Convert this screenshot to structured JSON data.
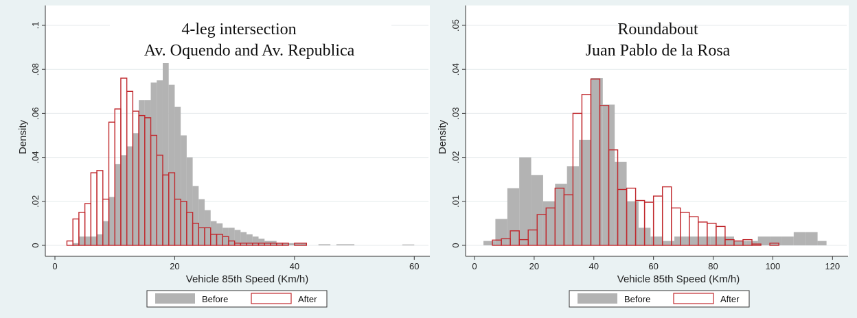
{
  "colors": {
    "before_fill": "#b3b3b3",
    "after_stroke": "#c0282d",
    "plot_bg": "#ffffff",
    "page_bg": "#eaf2f3",
    "grid": "#e4eaeb"
  },
  "chart_data": [
    {
      "type": "histogram",
      "title": "4-leg intersection",
      "subtitle": "Av. Oquendo and Av. Republica",
      "xlabel": "Vehicle 85th Speed (Km/h)",
      "ylabel": "Density",
      "xlim": [
        0,
        61
      ],
      "ylim": [
        0,
        0.1
      ],
      "xticks": [
        0,
        20,
        40,
        60
      ],
      "yticks": [
        0,
        0.02,
        0.04,
        0.06,
        0.08,
        0.1
      ],
      "ytick_labels": [
        "0",
        ".02",
        ".04",
        ".06",
        ".08",
        ".1"
      ],
      "grid": true,
      "legend_position": "bottom",
      "series": [
        {
          "name": "Before",
          "style": "filled",
          "bins": [
            [
              3,
              4,
              0.001
            ],
            [
              4,
              5,
              0.004
            ],
            [
              5,
              6,
              0.004
            ],
            [
              6,
              7,
              0.004
            ],
            [
              7,
              8,
              0.005
            ],
            [
              8,
              9,
              0.011
            ],
            [
              9,
              10,
              0.022
            ],
            [
              10,
              11,
              0.037
            ],
            [
              11,
              12,
              0.041
            ],
            [
              12,
              13,
              0.045
            ],
            [
              13,
              14,
              0.051
            ],
            [
              14,
              15,
              0.066
            ],
            [
              15,
              16,
              0.066
            ],
            [
              16,
              17,
              0.074
            ],
            [
              17,
              18,
              0.075
            ],
            [
              18,
              19,
              0.083
            ],
            [
              19,
              20,
              0.073
            ],
            [
              20,
              21,
              0.063
            ],
            [
              21,
              22,
              0.05
            ],
            [
              22,
              23,
              0.04
            ],
            [
              23,
              24,
              0.027
            ],
            [
              24,
              25,
              0.021
            ],
            [
              25,
              26,
              0.016
            ],
            [
              26,
              27,
              0.011
            ],
            [
              27,
              28,
              0.01
            ],
            [
              28,
              29,
              0.008
            ],
            [
              29,
              30,
              0.008
            ],
            [
              30,
              31,
              0.007
            ],
            [
              31,
              32,
              0.006
            ],
            [
              32,
              33,
              0.005
            ],
            [
              33,
              34,
              0.004
            ],
            [
              34,
              35,
              0.003
            ],
            [
              35,
              36,
              0.002
            ],
            [
              36,
              37,
              0.002
            ],
            [
              37,
              38,
              0.001
            ],
            [
              38,
              39,
              0.001
            ],
            [
              39,
              40,
              0.001
            ],
            [
              40,
              41,
              0.001
            ],
            [
              41,
              42,
              0.001
            ],
            [
              44,
              46,
              0.0005
            ],
            [
              47,
              50,
              0.0005
            ],
            [
              58,
              60,
              0.0004
            ]
          ]
        },
        {
          "name": "After",
          "style": "outline",
          "bins": [
            [
              2,
              3,
              0.002
            ],
            [
              3,
              4,
              0.012
            ],
            [
              4,
              5,
              0.015
            ],
            [
              5,
              6,
              0.019
            ],
            [
              6,
              7,
              0.033
            ],
            [
              7,
              8,
              0.034
            ],
            [
              8,
              9,
              0.021
            ],
            [
              9,
              10,
              0.056
            ],
            [
              10,
              11,
              0.062
            ],
            [
              11,
              12,
              0.076
            ],
            [
              12,
              13,
              0.07
            ],
            [
              13,
              14,
              0.061
            ],
            [
              14,
              15,
              0.059
            ],
            [
              15,
              16,
              0.058
            ],
            [
              16,
              17,
              0.05
            ],
            [
              17,
              18,
              0.041
            ],
            [
              18,
              19,
              0.032
            ],
            [
              19,
              20,
              0.033
            ],
            [
              20,
              21,
              0.021
            ],
            [
              21,
              22,
              0.02
            ],
            [
              22,
              23,
              0.015
            ],
            [
              23,
              24,
              0.01
            ],
            [
              24,
              25,
              0.008
            ],
            [
              25,
              26,
              0.008
            ],
            [
              26,
              27,
              0.005
            ],
            [
              27,
              28,
              0.005
            ],
            [
              28,
              29,
              0.004
            ],
            [
              29,
              30,
              0.002
            ],
            [
              30,
              31,
              0.001
            ],
            [
              31,
              32,
              0.001
            ],
            [
              32,
              33,
              0.001
            ],
            [
              33,
              34,
              0.001
            ],
            [
              34,
              35,
              0.001
            ],
            [
              35,
              36,
              0.001
            ],
            [
              36,
              37,
              0.001
            ],
            [
              37,
              38,
              0.001
            ],
            [
              38,
              39,
              0.001
            ],
            [
              40,
              42,
              0.001
            ]
          ]
        }
      ]
    },
    {
      "type": "histogram",
      "title": "Roundabout",
      "subtitle": "Juan Pablo de la Rosa",
      "xlabel": "Vehicle 85th Speed (Km/h)",
      "ylabel": "Density",
      "xlim": [
        0,
        122
      ],
      "ylim": [
        0,
        0.05
      ],
      "xticks": [
        0,
        20,
        40,
        60,
        80,
        100,
        120
      ],
      "yticks": [
        0,
        0.01,
        0.02,
        0.03,
        0.04,
        0.05
      ],
      "ytick_labels": [
        "0",
        ".01",
        ".02",
        ".03",
        ".04",
        ".05"
      ],
      "grid": true,
      "legend_position": "bottom",
      "series": [
        {
          "name": "Before",
          "style": "filled",
          "bins": [
            [
              3,
              7,
              0.001
            ],
            [
              7,
              11,
              0.006
            ],
            [
              11,
              15,
              0.013
            ],
            [
              15,
              19,
              0.02
            ],
            [
              19,
              23,
              0.016
            ],
            [
              23,
              27,
              0.01
            ],
            [
              27,
              31,
              0.014
            ],
            [
              31,
              35,
              0.018
            ],
            [
              35,
              39,
              0.024
            ],
            [
              39,
              43,
              0.038
            ],
            [
              43,
              47,
              0.032
            ],
            [
              47,
              51,
              0.019
            ],
            [
              51,
              55,
              0.01
            ],
            [
              55,
              59,
              0.004
            ],
            [
              59,
              63,
              0.002
            ],
            [
              63,
              67,
              0.001
            ],
            [
              67,
              71,
              0.002
            ],
            [
              71,
              75,
              0.002
            ],
            [
              75,
              79,
              0.002
            ],
            [
              79,
              83,
              0.002
            ],
            [
              83,
              87,
              0.002
            ],
            [
              87,
              91,
              0.001
            ],
            [
              91,
              95,
              0.001
            ],
            [
              95,
              99,
              0.002
            ],
            [
              99,
              103,
              0.002
            ],
            [
              103,
              107,
              0.002
            ],
            [
              107,
              111,
              0.003
            ],
            [
              111,
              115,
              0.003
            ],
            [
              115,
              118,
              0.001
            ]
          ]
        },
        {
          "name": "After",
          "style": "outline",
          "bins": [
            [
              6,
              9,
              0.0012
            ],
            [
              9,
              12,
              0.0015
            ],
            [
              12,
              15,
              0.0033
            ],
            [
              15,
              18,
              0.0013
            ],
            [
              18,
              21,
              0.0035
            ],
            [
              21,
              24,
              0.007
            ],
            [
              24,
              27,
              0.0085
            ],
            [
              27,
              30,
              0.013
            ],
            [
              30,
              33,
              0.0115
            ],
            [
              33,
              36,
              0.03
            ],
            [
              36,
              39,
              0.0343
            ],
            [
              39,
              42,
              0.0378
            ],
            [
              42,
              45,
              0.0318
            ],
            [
              45,
              48,
              0.0217
            ],
            [
              48,
              51,
              0.0127
            ],
            [
              51,
              54,
              0.013
            ],
            [
              54,
              57,
              0.0102
            ],
            [
              57,
              60,
              0.0098
            ],
            [
              60,
              63,
              0.0112
            ],
            [
              63,
              66,
              0.0133
            ],
            [
              66,
              69,
              0.0085
            ],
            [
              69,
              72,
              0.0075
            ],
            [
              72,
              75,
              0.0065
            ],
            [
              75,
              78,
              0.0053
            ],
            [
              78,
              81,
              0.005
            ],
            [
              81,
              84,
              0.0043
            ],
            [
              84,
              87,
              0.0013
            ],
            [
              87,
              90,
              0.001
            ],
            [
              90,
              93,
              0.0013
            ],
            [
              93,
              96,
              0.0003
            ],
            [
              99,
              102,
              0.0005
            ]
          ]
        }
      ]
    }
  ]
}
